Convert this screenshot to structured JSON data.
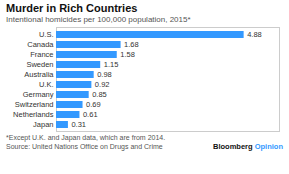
{
  "chart_data": {
    "type": "bar",
    "orientation": "horizontal",
    "title": "Murder in Rich Countries",
    "subtitle": "Intentional homicides per 100,000 population, 2015*",
    "categories": [
      "U.S.",
      "Canada",
      "France",
      "Sweden",
      "Australia",
      "U.K.",
      "Germany",
      "Switzerland",
      "Netherlands",
      "Japan"
    ],
    "values": [
      4.88,
      1.68,
      1.58,
      1.15,
      0.98,
      0.92,
      0.85,
      0.69,
      0.61,
      0.31
    ],
    "color": "#3399ff",
    "xlim": [
      0,
      5.8
    ],
    "data_labels": true,
    "tick_labels": "y",
    "grid": false,
    "annotations": [
      "*Except U.K. and Japan data, which are from 2014.",
      "Source: United Nations Office on Drugs and Crime",
      "Bloomberg",
      "Opinion"
    ]
  }
}
